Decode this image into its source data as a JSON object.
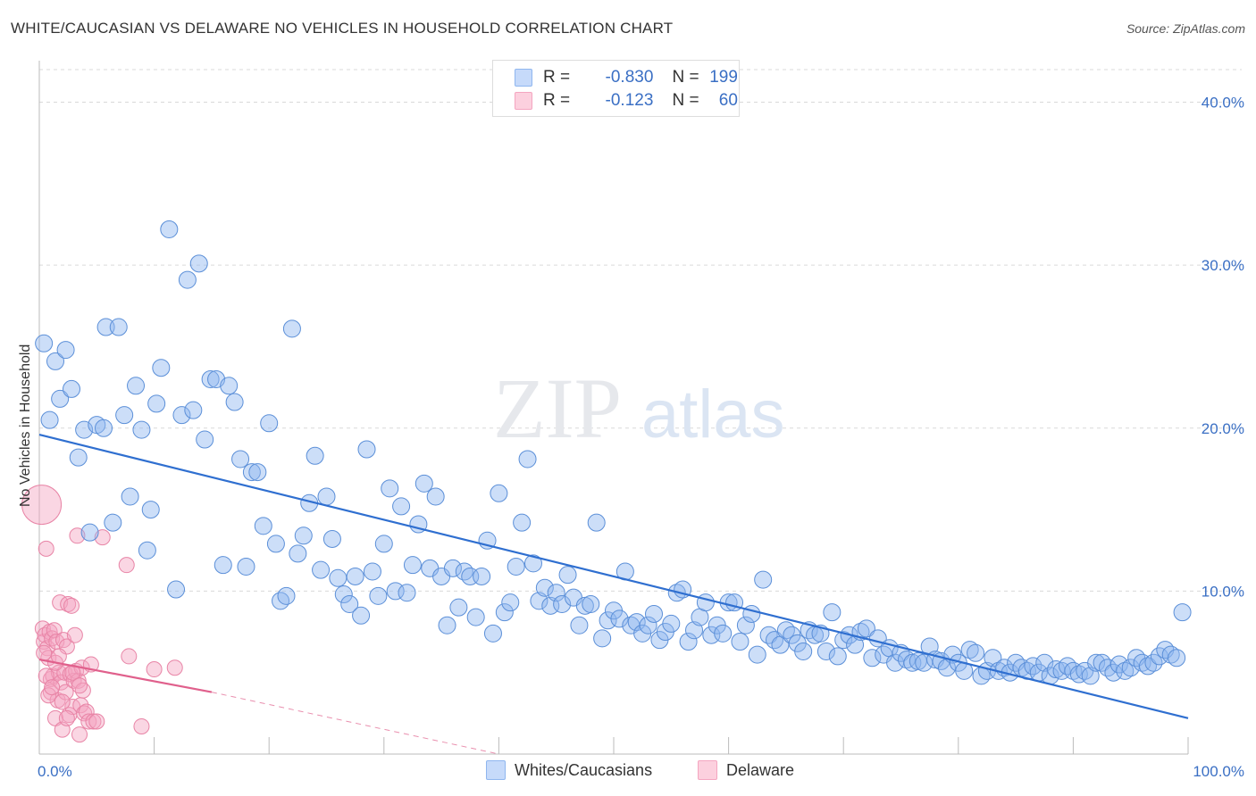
{
  "title": "WHITE/CAUCASIAN VS DELAWARE NO VEHICLES IN HOUSEHOLD CORRELATION CHART",
  "source": "Source: ZipAtlas.com",
  "watermark": {
    "zip": "ZIP",
    "atlas": "atlas"
  },
  "legend": {
    "rows": [
      {
        "r_label": "R =",
        "r_value": "-0.830",
        "n_label": "N =",
        "n_value": "199",
        "color": "#8fb6ef"
      },
      {
        "r_label": "R =",
        "r_value": "-0.123",
        "n_label": "N =",
        "n_value": "60",
        "color": "#f4a5c0"
      }
    ]
  },
  "bottom_legend": [
    {
      "label": "Whites/Caucasians",
      "color": "#8fb6ef"
    },
    {
      "label": "Delaware",
      "color": "#f4a5c0"
    }
  ],
  "chart_data": {
    "type": "scatter",
    "title": "WHITE/CAUCASIAN VS DELAWARE NO VEHICLES IN HOUSEHOLD CORRELATION CHART",
    "ylabel": "No Vehicles in Household",
    "xlabel": "",
    "xlim": [
      0,
      100
    ],
    "ylim": [
      0,
      42
    ],
    "x_tick_labels": [
      "0.0%",
      "100.0%"
    ],
    "y_ticks": [
      10,
      20,
      30,
      40
    ],
    "y_tick_labels": [
      "10.0%",
      "20.0%",
      "30.0%",
      "40.0%"
    ],
    "grid": "horizontal dashed",
    "legend_position": "top-center",
    "series": [
      {
        "name": "Whites/Caucasians",
        "color": "#8fb6ef",
        "stroke": "#5b8fd8",
        "trend": {
          "x0": 0,
          "y0": 19.6,
          "x1": 100,
          "y1": 2.2,
          "color": "#2f6fd0"
        },
        "points": [
          [
            0.4,
            25.2
          ],
          [
            0.9,
            20.5
          ],
          [
            1.4,
            24.1
          ],
          [
            1.8,
            21.8
          ],
          [
            2.3,
            24.8
          ],
          [
            2.8,
            22.4
          ],
          [
            3.4,
            18.2
          ],
          [
            3.9,
            19.9
          ],
          [
            4.4,
            13.6
          ],
          [
            5.0,
            20.2
          ],
          [
            5.6,
            20.0
          ],
          [
            5.8,
            26.2
          ],
          [
            6.4,
            14.2
          ],
          [
            6.9,
            26.2
          ],
          [
            7.4,
            20.8
          ],
          [
            7.9,
            15.8
          ],
          [
            8.4,
            22.6
          ],
          [
            8.9,
            19.9
          ],
          [
            9.4,
            12.5
          ],
          [
            9.7,
            15.0
          ],
          [
            10.2,
            21.5
          ],
          [
            10.6,
            23.7
          ],
          [
            11.3,
            32.2
          ],
          [
            11.9,
            10.1
          ],
          [
            12.4,
            20.8
          ],
          [
            12.9,
            29.1
          ],
          [
            13.4,
            21.1
          ],
          [
            13.9,
            30.1
          ],
          [
            14.4,
            19.3
          ],
          [
            14.9,
            23.0
          ],
          [
            15.4,
            23.0
          ],
          [
            16.0,
            11.6
          ],
          [
            16.5,
            22.6
          ],
          [
            17.0,
            21.6
          ],
          [
            17.5,
            18.1
          ],
          [
            18.0,
            11.5
          ],
          [
            18.5,
            17.3
          ],
          [
            19.0,
            17.3
          ],
          [
            19.5,
            14.0
          ],
          [
            20.0,
            20.3
          ],
          [
            20.6,
            12.9
          ],
          [
            21.0,
            9.4
          ],
          [
            21.5,
            9.7
          ],
          [
            22.0,
            26.1
          ],
          [
            22.5,
            12.3
          ],
          [
            23.0,
            13.4
          ],
          [
            23.5,
            15.4
          ],
          [
            24.0,
            18.3
          ],
          [
            24.5,
            11.3
          ],
          [
            25.0,
            15.8
          ],
          [
            25.5,
            13.2
          ],
          [
            26.0,
            10.8
          ],
          [
            26.5,
            9.8
          ],
          [
            27.0,
            9.2
          ],
          [
            27.5,
            10.9
          ],
          [
            28.0,
            8.5
          ],
          [
            28.5,
            18.7
          ],
          [
            29.0,
            11.2
          ],
          [
            29.5,
            9.7
          ],
          [
            30.0,
            12.9
          ],
          [
            30.5,
            16.3
          ],
          [
            31.0,
            10.0
          ],
          [
            31.5,
            15.2
          ],
          [
            32.0,
            9.9
          ],
          [
            32.5,
            11.6
          ],
          [
            33.0,
            14.1
          ],
          [
            33.5,
            16.6
          ],
          [
            34.0,
            11.4
          ],
          [
            34.5,
            15.8
          ],
          [
            35.0,
            10.9
          ],
          [
            35.5,
            7.9
          ],
          [
            36.0,
            11.4
          ],
          [
            36.5,
            9.0
          ],
          [
            37.0,
            11.2
          ],
          [
            37.5,
            10.9
          ],
          [
            38.0,
            8.4
          ],
          [
            38.5,
            10.9
          ],
          [
            39.0,
            13.1
          ],
          [
            39.5,
            7.4
          ],
          [
            40.0,
            16.0
          ],
          [
            40.5,
            8.7
          ],
          [
            41.0,
            9.3
          ],
          [
            41.5,
            11.5
          ],
          [
            42.0,
            14.2
          ],
          [
            42.5,
            18.1
          ],
          [
            43.0,
            11.7
          ],
          [
            43.5,
            9.4
          ],
          [
            44.0,
            10.2
          ],
          [
            44.5,
            9.1
          ],
          [
            45.0,
            9.9
          ],
          [
            45.5,
            9.2
          ],
          [
            46.0,
            11.0
          ],
          [
            46.5,
            9.6
          ],
          [
            47.0,
            7.9
          ],
          [
            47.5,
            9.1
          ],
          [
            48.0,
            9.2
          ],
          [
            48.5,
            14.2
          ],
          [
            49.0,
            7.1
          ],
          [
            49.5,
            8.2
          ],
          [
            50.0,
            8.8
          ],
          [
            50.5,
            8.3
          ],
          [
            51.0,
            11.2
          ],
          [
            51.5,
            7.9
          ],
          [
            52.0,
            8.1
          ],
          [
            52.5,
            7.4
          ],
          [
            53.0,
            7.9
          ],
          [
            53.5,
            8.6
          ],
          [
            54.0,
            7.0
          ],
          [
            54.5,
            7.5
          ],
          [
            55.0,
            8.0
          ],
          [
            55.5,
            9.9
          ],
          [
            56.0,
            10.1
          ],
          [
            56.5,
            6.9
          ],
          [
            57.0,
            7.6
          ],
          [
            57.5,
            8.4
          ],
          [
            58.0,
            9.3
          ],
          [
            58.5,
            7.3
          ],
          [
            59.0,
            7.9
          ],
          [
            59.5,
            7.4
          ],
          [
            60.0,
            9.3
          ],
          [
            60.5,
            9.3
          ],
          [
            61.0,
            6.9
          ],
          [
            61.5,
            7.9
          ],
          [
            62.0,
            8.6
          ],
          [
            62.5,
            6.1
          ],
          [
            63.0,
            10.7
          ],
          [
            63.5,
            7.3
          ],
          [
            64.0,
            7.0
          ],
          [
            64.5,
            6.7
          ],
          [
            65.0,
            7.6
          ],
          [
            65.5,
            7.3
          ],
          [
            66.0,
            6.8
          ],
          [
            66.5,
            6.3
          ],
          [
            67.0,
            7.6
          ],
          [
            67.5,
            7.3
          ],
          [
            68.0,
            7.4
          ],
          [
            68.5,
            6.3
          ],
          [
            69.0,
            8.7
          ],
          [
            69.5,
            6.0
          ],
          [
            70.0,
            7.0
          ],
          [
            70.5,
            7.3
          ],
          [
            71.0,
            6.7
          ],
          [
            71.5,
            7.5
          ],
          [
            72.0,
            7.7
          ],
          [
            72.5,
            5.9
          ],
          [
            73.0,
            7.1
          ],
          [
            73.5,
            6.1
          ],
          [
            74.0,
            6.5
          ],
          [
            74.5,
            5.6
          ],
          [
            75.0,
            6.2
          ],
          [
            75.5,
            5.8
          ],
          [
            76.0,
            5.6
          ],
          [
            76.5,
            5.7
          ],
          [
            77.0,
            5.6
          ],
          [
            77.5,
            6.6
          ],
          [
            78.0,
            5.8
          ],
          [
            78.5,
            5.7
          ],
          [
            79.0,
            5.3
          ],
          [
            79.5,
            6.1
          ],
          [
            80.0,
            5.6
          ],
          [
            80.5,
            5.1
          ],
          [
            81.0,
            6.4
          ],
          [
            81.5,
            6.2
          ],
          [
            82.0,
            4.8
          ],
          [
            82.5,
            5.1
          ],
          [
            83.0,
            5.9
          ],
          [
            83.5,
            5.1
          ],
          [
            84.0,
            5.3
          ],
          [
            84.5,
            5.0
          ],
          [
            85.0,
            5.6
          ],
          [
            85.5,
            5.3
          ],
          [
            86.0,
            5.1
          ],
          [
            86.5,
            5.4
          ],
          [
            87.0,
            5.0
          ],
          [
            87.5,
            5.6
          ],
          [
            88.0,
            4.8
          ],
          [
            88.5,
            5.2
          ],
          [
            89.0,
            5.1
          ],
          [
            89.5,
            5.4
          ],
          [
            90.0,
            5.1
          ],
          [
            90.5,
            4.9
          ],
          [
            91.0,
            5.1
          ],
          [
            91.5,
            4.8
          ],
          [
            92.0,
            5.6
          ],
          [
            92.5,
            5.6
          ],
          [
            93.0,
            5.3
          ],
          [
            93.5,
            5.0
          ],
          [
            94.0,
            5.5
          ],
          [
            94.5,
            5.1
          ],
          [
            95.0,
            5.3
          ],
          [
            95.5,
            5.9
          ],
          [
            96.0,
            5.6
          ],
          [
            96.5,
            5.4
          ],
          [
            97.0,
            5.6
          ],
          [
            97.5,
            6.0
          ],
          [
            98.0,
            6.4
          ],
          [
            98.5,
            6.1
          ],
          [
            99.0,
            5.9
          ],
          [
            99.5,
            8.7
          ]
        ]
      },
      {
        "name": "Delaware",
        "color": "#f4a5c0",
        "stroke": "#e884a6",
        "trend": {
          "x0": 0,
          "y0": 5.8,
          "x1": 15,
          "y1": 3.8,
          "color": "#e0608c",
          "dashed_to": [
            40,
            0
          ]
        },
        "points": [
          [
            0.2,
            15.3
          ],
          [
            0.3,
            7.7
          ],
          [
            0.4,
            6.9
          ],
          [
            0.5,
            7.3
          ],
          [
            0.6,
            12.6
          ],
          [
            0.7,
            6.5
          ],
          [
            0.8,
            5.9
          ],
          [
            0.9,
            7.5
          ],
          [
            1.0,
            4.6
          ],
          [
            1.0,
            3.8
          ],
          [
            1.1,
            7.1
          ],
          [
            1.2,
            4.8
          ],
          [
            1.3,
            7.6
          ],
          [
            1.4,
            2.2
          ],
          [
            1.5,
            6.9
          ],
          [
            1.6,
            3.3
          ],
          [
            1.7,
            5.0
          ],
          [
            1.8,
            9.3
          ],
          [
            1.9,
            4.4
          ],
          [
            2.0,
            1.5
          ],
          [
            2.1,
            7.0
          ],
          [
            2.2,
            5.0
          ],
          [
            2.3,
            3.8
          ],
          [
            2.4,
            6.6
          ],
          [
            2.5,
            9.2
          ],
          [
            2.6,
            2.4
          ],
          [
            2.7,
            4.9
          ],
          [
            2.8,
            9.1
          ],
          [
            2.9,
            2.9
          ],
          [
            3.0,
            4.5
          ],
          [
            3.1,
            7.3
          ],
          [
            3.2,
            5.1
          ],
          [
            3.3,
            13.4
          ],
          [
            3.4,
            4.5
          ],
          [
            3.5,
            1.2
          ],
          [
            3.6,
            3.0
          ],
          [
            3.7,
            5.3
          ],
          [
            3.8,
            3.9
          ],
          [
            3.9,
            2.5
          ],
          [
            4.1,
            2.6
          ],
          [
            4.3,
            2.0
          ],
          [
            4.5,
            5.5
          ],
          [
            4.7,
            2.0
          ],
          [
            5.0,
            2.0
          ],
          [
            5.5,
            13.3
          ],
          [
            7.6,
            11.6
          ],
          [
            7.8,
            6.0
          ],
          [
            8.9,
            1.7
          ],
          [
            10.0,
            5.2
          ],
          [
            11.8,
            5.3
          ],
          [
            0.4,
            6.2
          ],
          [
            0.6,
            4.8
          ],
          [
            0.8,
            3.6
          ],
          [
            1.1,
            4.1
          ],
          [
            1.4,
            5.6
          ],
          [
            1.7,
            6.0
          ],
          [
            2.0,
            3.2
          ],
          [
            2.4,
            2.2
          ],
          [
            2.9,
            5.0
          ],
          [
            3.5,
            4.2
          ]
        ]
      }
    ]
  }
}
